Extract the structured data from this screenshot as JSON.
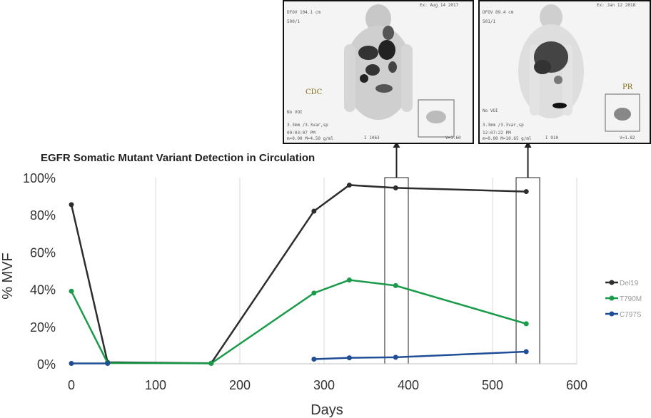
{
  "chart_data": {
    "type": "line",
    "title": "EGFR Somatic Mutant Variant Detection in Circulation",
    "xlabel": "Days",
    "ylabel": "% MVF",
    "xlim": [
      0,
      600
    ],
    "ylim": [
      0,
      100
    ],
    "xticks": [
      "0",
      "100",
      "200",
      "300",
      "400",
      "500",
      "600"
    ],
    "yticks": [
      "0%",
      "20%",
      "40%",
      "60%",
      "80%",
      "100%"
    ],
    "grid": "vertical",
    "legend_position": "right",
    "series": [
      {
        "name": "Del19",
        "color": "#2d2d2d",
        "points": [
          [
            0,
            85.5
          ],
          [
            43,
            0.8
          ],
          [
            166,
            0.3
          ],
          [
            288,
            82
          ],
          [
            330,
            96
          ],
          [
            385,
            94.5
          ],
          [
            540,
            92.5
          ]
        ]
      },
      {
        "name": "T790M",
        "color": "#1a9b4a",
        "points": [
          [
            0,
            39
          ],
          [
            43,
            0.5
          ],
          [
            166,
            0.2
          ],
          [
            288,
            38
          ],
          [
            330,
            45
          ],
          [
            385,
            42
          ],
          [
            540,
            21.5
          ]
        ]
      },
      {
        "name": "C797S",
        "color": "#1f4e96",
        "points": [
          [
            0,
            0.2
          ],
          [
            43,
            0.2
          ]
        ],
        "segment2": [
          [
            288,
            2.5
          ],
          [
            330,
            3.2
          ],
          [
            385,
            3.5
          ],
          [
            540,
            6.5
          ]
        ]
      }
    ],
    "highlight_ranges": [
      [
        372,
        400
      ],
      [
        528,
        556
      ]
    ]
  },
  "pet_left": {
    "header_left": "DFOV 104.1 cm",
    "header_right": "Ex: Aug 14 2017",
    "line2": "500/1",
    "tag": "CDC",
    "voi": "No VOI",
    "recon": "3.3mm /3.3var,sp",
    "time": "09:03:07 PM",
    "window": "m=0.00 M=4.50 g/ml",
    "index": "I 1063",
    "scale": "V=1.60"
  },
  "pet_right": {
    "header_left": "DFOV 89.4 cm",
    "header_right": "Ex: Jan 12 2018",
    "line2": "501/1",
    "tag": "PR",
    "voi": "No VOI",
    "recon": "3.3mm /3.3var,sp",
    "time": "12:07:22 PM",
    "window": "m=0.00 M=10.65 g/ml",
    "index": "I 910",
    "scale": "V=1.82"
  }
}
